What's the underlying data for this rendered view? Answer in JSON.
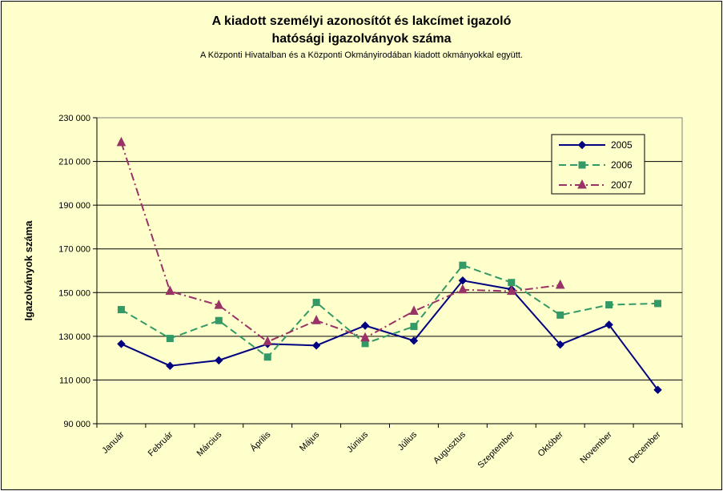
{
  "chart_data": {
    "type": "line",
    "title": "A kiadott személyi azonosítót és lakcímet igazoló",
    "title_line2": "hatósági igazolványok száma",
    "subtitle": "A Központi Hivatalban és a Központi Okmányirodában kiadott okmányokkal együtt.",
    "xlabel": "",
    "ylabel": "Igazolványok száma",
    "categories": [
      "Január",
      "Február",
      "Március",
      "Április",
      "Május",
      "Június",
      "Július",
      "Augusztus",
      "Szeptember",
      "Október",
      "November",
      "December"
    ],
    "ylim": [
      90000,
      230000
    ],
    "yticks": [
      90000,
      110000,
      130000,
      150000,
      170000,
      190000,
      210000,
      230000
    ],
    "ytick_labels": [
      "90 000",
      "110 000",
      "130 000",
      "150 000",
      "170 000",
      "190 000",
      "210 000",
      "230 000"
    ],
    "grid": true,
    "legend_position": "top-right",
    "series": [
      {
        "name": "2005",
        "color": "#000080",
        "marker": "diamond",
        "dash": "solid",
        "values": [
          126500,
          116500,
          119000,
          126500,
          125800,
          134900,
          128000,
          155500,
          151500,
          126200,
          135300,
          105500
        ]
      },
      {
        "name": "2006",
        "color": "#339966",
        "marker": "square",
        "dash": "dashed",
        "values": [
          142200,
          129000,
          137200,
          120500,
          145500,
          126700,
          134500,
          162500,
          154600,
          139700,
          144400,
          145000
        ]
      },
      {
        "name": "2007",
        "color": "#993366",
        "marker": "triangle",
        "dash": "dashdot",
        "values": [
          218700,
          150600,
          144200,
          127500,
          137200,
          129300,
          141500,
          151300,
          150600,
          153400,
          null,
          null
        ]
      }
    ]
  }
}
